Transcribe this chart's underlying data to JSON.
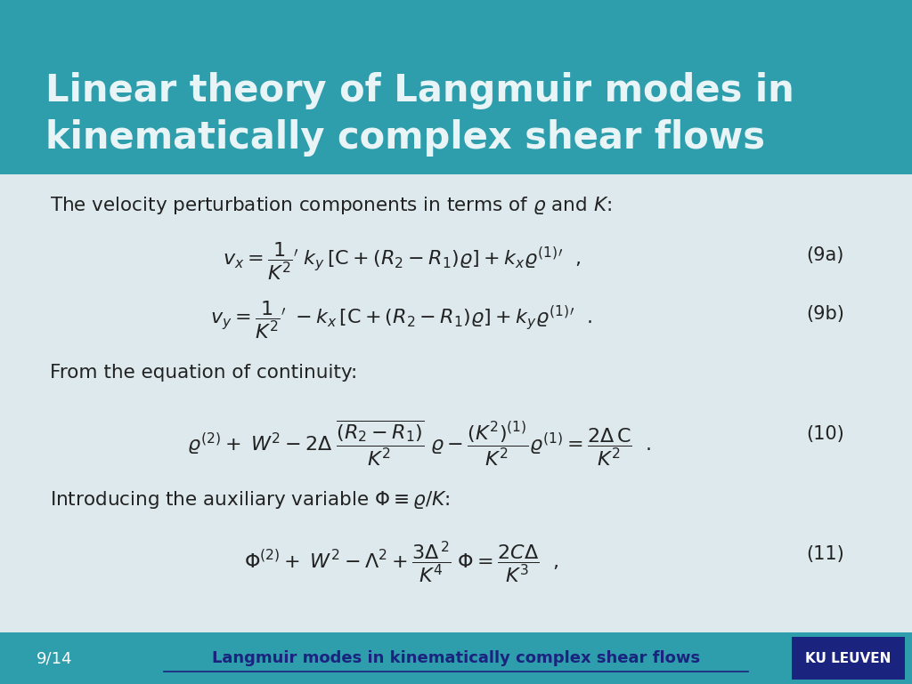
{
  "title_text": "Linear theory of Langmuir modes in\nkinematically complex shear flows",
  "title_bg_color": "#2E9EAD",
  "title_text_color": "#E8F4F6",
  "slide_bg_color": "#DDE9ED",
  "footer_bg_color": "#2E9EAD",
  "footer_text_color": "#FFFFFF",
  "footer_left": "9/14",
  "footer_link": "Langmuir modes in kinematically complex shear flows",
  "footer_link_color": "#1A237E",
  "ku_leuven_bg": "#1A237E",
  "ku_leuven_text": "KU LEUVEN",
  "text_color": "#222222",
  "eq_color": "#222222",
  "line1": "The velocity perturbation components in terms of $\\varrho$ and $K$:",
  "eq9a_label": "(9a)",
  "eq9b_label": "(9b)",
  "eq10_label": "(10)",
  "eq11_label": "(11)",
  "line_continuity": "From the equation of continuity:",
  "line_auxiliary": "Introducing the auxiliary variable $\\Phi \\equiv \\varrho/K$:"
}
